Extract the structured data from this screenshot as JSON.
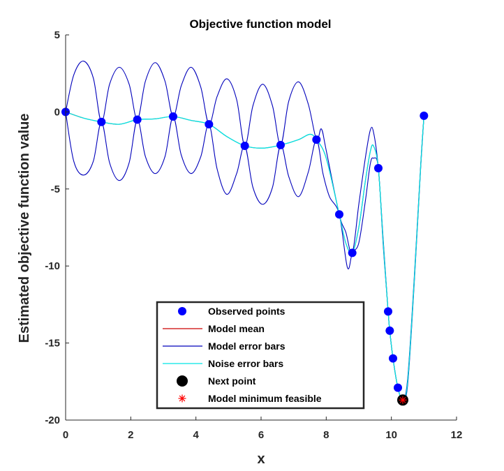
{
  "chart_data": {
    "type": "line",
    "title": "Objective function model",
    "xlabel": "x",
    "ylabel": "Estimated objective function value",
    "xlim": [
      0,
      12
    ],
    "ylim": [
      -20,
      5
    ],
    "x_ticks": [
      0,
      2,
      4,
      6,
      8,
      10,
      12
    ],
    "y_ticks": [
      5,
      0,
      -5,
      -10,
      -15,
      -20
    ],
    "grid": false,
    "legend_position": "bottom-center",
    "colors": {
      "observed": "#0000ff",
      "model_mean": "#cc0000",
      "model_error_bars": "#0000bb",
      "noise_error_bars": "#00e5e5",
      "next_point": "#000000",
      "model_minimum": "#ff0000"
    },
    "legend": [
      {
        "key": "observed",
        "label": "Observed points",
        "marker": "dot"
      },
      {
        "key": "model_mean",
        "label": "Model mean",
        "marker": "line"
      },
      {
        "key": "model_error_bars",
        "label": "Model error bars",
        "marker": "line"
      },
      {
        "key": "noise_error_bars",
        "label": "Noise error bars",
        "marker": "line"
      },
      {
        "key": "next_point",
        "label": "Next point",
        "marker": "bigdot"
      },
      {
        "key": "model_minimum",
        "label": "Model minimum feasible",
        "marker": "star"
      }
    ],
    "observed_points": [
      [
        0,
        0
      ],
      [
        1.1,
        -0.65
      ],
      [
        2.2,
        -0.5
      ],
      [
        3.3,
        -0.3
      ],
      [
        4.4,
        -0.8
      ],
      [
        5.5,
        -2.2
      ],
      [
        6.6,
        -2.15
      ],
      [
        7.7,
        -1.8
      ],
      [
        8.4,
        -6.65
      ],
      [
        8.8,
        -9.15
      ],
      [
        9.6,
        -3.65
      ],
      [
        9.9,
        -12.95
      ],
      [
        9.95,
        -14.2
      ],
      [
        10.05,
        -16.0
      ],
      [
        10.2,
        -17.9
      ],
      [
        10.35,
        -18.7
      ],
      [
        11.0,
        -0.25
      ]
    ],
    "model_mean": [
      [
        0,
        0
      ],
      [
        0.55,
        -0.4
      ],
      [
        1.1,
        -0.65
      ],
      [
        1.65,
        -0.8
      ],
      [
        2.2,
        -0.5
      ],
      [
        2.75,
        -0.45
      ],
      [
        3.3,
        -0.3
      ],
      [
        3.85,
        -0.55
      ],
      [
        4.4,
        -0.8
      ],
      [
        4.95,
        -1.6
      ],
      [
        5.5,
        -2.2
      ],
      [
        6.05,
        -2.35
      ],
      [
        6.6,
        -2.15
      ],
      [
        7.15,
        -1.8
      ],
      [
        7.5,
        -1.45
      ],
      [
        7.7,
        -1.8
      ],
      [
        8.0,
        -3.0
      ],
      [
        8.4,
        -6.65
      ],
      [
        8.6,
        -8.5
      ],
      [
        8.8,
        -9.15
      ],
      [
        9.0,
        -7.5
      ],
      [
        9.2,
        -4.5
      ],
      [
        9.35,
        -2.6
      ],
      [
        9.45,
        -2.2
      ],
      [
        9.6,
        -3.65
      ],
      [
        9.75,
        -8.5
      ],
      [
        9.9,
        -12.95
      ],
      [
        9.95,
        -14.2
      ],
      [
        10.05,
        -16.0
      ],
      [
        10.2,
        -17.9
      ],
      [
        10.35,
        -18.7
      ],
      [
        10.5,
        -17.5
      ],
      [
        10.7,
        -11.0
      ],
      [
        10.9,
        -3.5
      ],
      [
        11.0,
        -0.25
      ]
    ],
    "model_error_upper": [
      [
        0,
        0
      ],
      [
        0.25,
        2.4
      ],
      [
        0.55,
        3.3
      ],
      [
        0.85,
        2.2
      ],
      [
        1.1,
        -0.65
      ],
      [
        1.35,
        1.8
      ],
      [
        1.65,
        2.9
      ],
      [
        1.95,
        1.8
      ],
      [
        2.2,
        -0.5
      ],
      [
        2.45,
        2.0
      ],
      [
        2.75,
        3.2
      ],
      [
        3.05,
        2.0
      ],
      [
        3.3,
        -0.3
      ],
      [
        3.55,
        1.7
      ],
      [
        3.85,
        2.9
      ],
      [
        4.15,
        1.6
      ],
      [
        4.4,
        -0.8
      ],
      [
        4.65,
        1.0
      ],
      [
        4.95,
        2.15
      ],
      [
        5.25,
        0.8
      ],
      [
        5.5,
        -2.2
      ],
      [
        5.75,
        0.4
      ],
      [
        6.05,
        1.8
      ],
      [
        6.35,
        0.4
      ],
      [
        6.6,
        -2.15
      ],
      [
        6.85,
        0.7
      ],
      [
        7.15,
        1.95
      ],
      [
        7.45,
        0.5
      ],
      [
        7.7,
        -1.8
      ],
      [
        7.85,
        -1.1
      ],
      [
        8.0,
        -2.5
      ],
      [
        8.4,
        -6.65
      ],
      [
        8.6,
        -7.8
      ],
      [
        8.8,
        -9.15
      ],
      [
        9.0,
        -6.0
      ],
      [
        9.2,
        -3.0
      ],
      [
        9.35,
        -1.2
      ],
      [
        9.45,
        -1.3
      ],
      [
        9.6,
        -3.65
      ],
      [
        9.75,
        -8.3
      ],
      [
        9.9,
        -12.95
      ],
      [
        9.95,
        -14.2
      ],
      [
        10.05,
        -16.0
      ],
      [
        10.2,
        -17.9
      ],
      [
        10.35,
        -18.7
      ],
      [
        10.5,
        -17.3
      ],
      [
        10.7,
        -10.8
      ],
      [
        10.9,
        -3.4
      ],
      [
        11.0,
        -0.25
      ]
    ],
    "model_error_lower": [
      [
        0,
        0
      ],
      [
        0.25,
        -3.2
      ],
      [
        0.55,
        -4.1
      ],
      [
        0.85,
        -3.2
      ],
      [
        1.1,
        -0.65
      ],
      [
        1.35,
        -3.3
      ],
      [
        1.65,
        -4.45
      ],
      [
        1.95,
        -3.3
      ],
      [
        2.2,
        -0.5
      ],
      [
        2.45,
        -2.9
      ],
      [
        2.75,
        -4.0
      ],
      [
        3.05,
        -2.9
      ],
      [
        3.3,
        -0.3
      ],
      [
        3.55,
        -2.8
      ],
      [
        3.85,
        -4.0
      ],
      [
        4.15,
        -2.9
      ],
      [
        4.4,
        -0.8
      ],
      [
        4.65,
        -3.7
      ],
      [
        4.95,
        -5.35
      ],
      [
        5.25,
        -4.0
      ],
      [
        5.5,
        -2.2
      ],
      [
        5.75,
        -4.9
      ],
      [
        6.05,
        -6.0
      ],
      [
        6.35,
        -4.9
      ],
      [
        6.6,
        -2.15
      ],
      [
        6.85,
        -4.2
      ],
      [
        7.15,
        -5.5
      ],
      [
        7.45,
        -3.9
      ],
      [
        7.7,
        -1.8
      ],
      [
        7.9,
        -4.0
      ],
      [
        8.1,
        -5.5
      ],
      [
        8.4,
        -6.65
      ],
      [
        8.65,
        -10.1
      ],
      [
        8.8,
        -9.15
      ],
      [
        9.0,
        -8.5
      ],
      [
        9.2,
        -5.8
      ],
      [
        9.35,
        -3.4
      ],
      [
        9.45,
        -3.0
      ],
      [
        9.6,
        -3.65
      ],
      [
        9.75,
        -8.7
      ],
      [
        9.9,
        -12.95
      ],
      [
        9.95,
        -14.2
      ],
      [
        10.05,
        -16.0
      ],
      [
        10.2,
        -17.9
      ],
      [
        10.35,
        -18.7
      ],
      [
        10.5,
        -17.7
      ],
      [
        10.7,
        -11.2
      ],
      [
        10.9,
        -3.6
      ],
      [
        11.0,
        -0.25
      ]
    ],
    "next_point": [
      10.35,
      -18.7
    ],
    "model_minimum_feasible": [
      10.35,
      -18.7
    ]
  }
}
